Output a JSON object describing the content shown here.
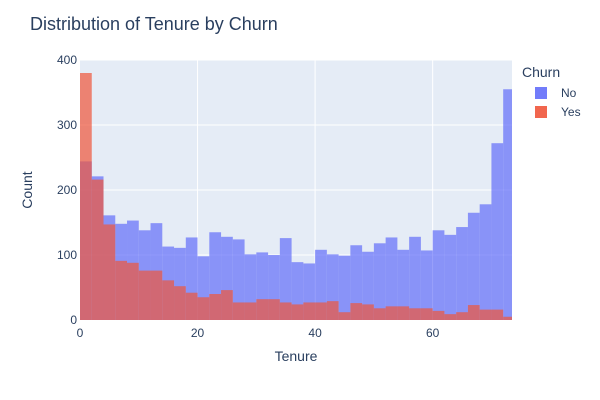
{
  "chart_data": {
    "type": "bar",
    "title": "Distribution of Tenure by Churn",
    "xlabel": "Tenure",
    "ylabel": "Count",
    "xlim": [
      0,
      73.5
    ],
    "ylim": [
      0,
      400
    ],
    "bin_width": 2,
    "bin_starts": [
      0,
      2,
      4,
      6,
      8,
      10,
      12,
      14,
      16,
      18,
      20,
      22,
      24,
      26,
      28,
      30,
      32,
      34,
      36,
      38,
      40,
      42,
      44,
      46,
      48,
      50,
      52,
      54,
      56,
      58,
      60,
      62,
      64,
      66,
      68,
      70,
      72
    ],
    "x_ticks": [
      0,
      20,
      40,
      60
    ],
    "y_ticks": [
      0,
      100,
      200,
      300,
      400
    ],
    "grid": true,
    "legend_position": "top-right",
    "legend_title": "Churn",
    "series": [
      {
        "name": "No",
        "color": "#636efa",
        "values": [
          244,
          221,
          161,
          148,
          153,
          138,
          149,
          113,
          111,
          127,
          98,
          135,
          128,
          124,
          101,
          104,
          100,
          126,
          89,
          87,
          108,
          101,
          99,
          115,
          105,
          118,
          127,
          108,
          128,
          107,
          138,
          131,
          143,
          165,
          178,
          272,
          355
        ]
      },
      {
        "name": "Yes",
        "color": "#ef553b",
        "values": [
          380,
          216,
          147,
          91,
          88,
          76,
          76,
          61,
          52,
          42,
          35,
          40,
          46,
          27,
          27,
          32,
          32,
          27,
          24,
          27,
          27,
          29,
          12,
          26,
          24,
          18,
          21,
          21,
          18,
          18,
          14,
          9,
          12,
          23,
          16,
          16,
          5
        ]
      }
    ]
  }
}
